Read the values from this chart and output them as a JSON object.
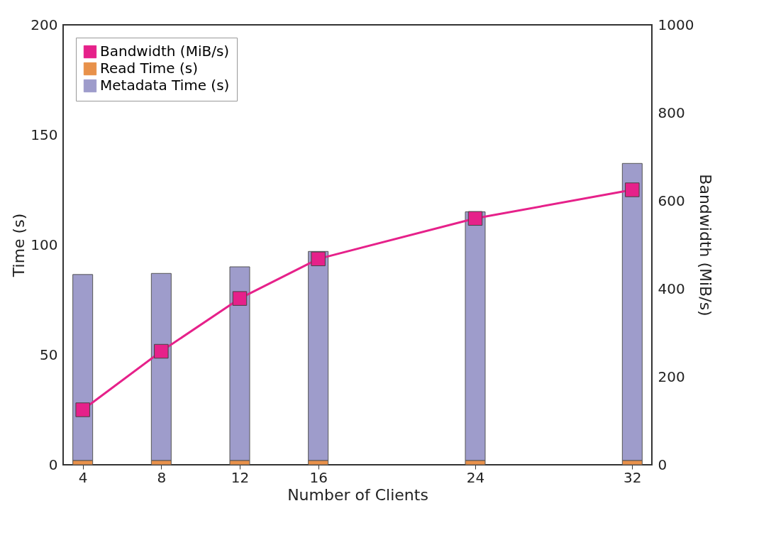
{
  "chart_data": {
    "type": "bar",
    "xlabel": "Number of Clients",
    "ylabel": "Time (s)",
    "y2label": "Bandwidth (MiB/s)",
    "x": [
      4,
      8,
      12,
      16,
      24,
      32
    ],
    "xlim": [
      3,
      33
    ],
    "xticks": [
      4,
      8,
      12,
      16,
      24,
      32
    ],
    "ylim": [
      0,
      200
    ],
    "yticks": [
      0,
      50,
      100,
      150,
      200
    ],
    "y2lim": [
      0,
      1000
    ],
    "y2ticks": [
      0,
      200,
      400,
      600,
      800,
      1000
    ],
    "stacked": true,
    "grid": false,
    "legend": "top left",
    "marker": "square",
    "line_style": "solid",
    "series": [
      {
        "name": "Bandwidth (MiB/s)",
        "type": "line",
        "axis": "y2",
        "color": "#e6218a",
        "values": [
          125,
          258,
          378,
          468,
          560,
          625
        ]
      },
      {
        "name": "Read Time (s)",
        "color": "#e8914a",
        "values": [
          2,
          2,
          2,
          2,
          2,
          2
        ]
      },
      {
        "name": "Metadata Time (s)",
        "color": "#9e9ccb",
        "values": [
          84.5,
          85,
          88,
          95,
          113,
          135
        ]
      }
    ]
  }
}
